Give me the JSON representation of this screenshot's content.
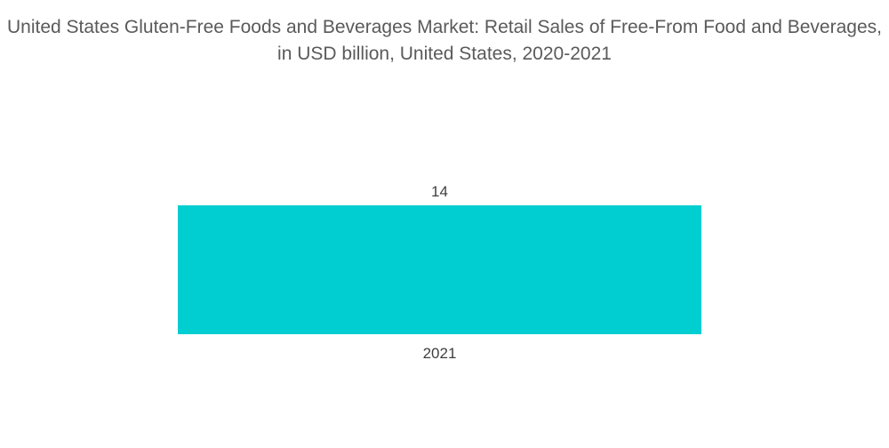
{
  "chart_data": {
    "type": "bar",
    "title": "United States Gluten-Free Foods and Beverages Market: Retail Sales of Free-From Food and Beverages, in USD billion, United States, 2020-2021",
    "categories": [
      "2021"
    ],
    "values": [
      14
    ],
    "data_labels": [
      "14"
    ],
    "xlabel": "",
    "ylabel": "",
    "ylim": [
      0,
      14
    ],
    "grid": false,
    "legend": "none",
    "bar_color": "#00CED1"
  }
}
